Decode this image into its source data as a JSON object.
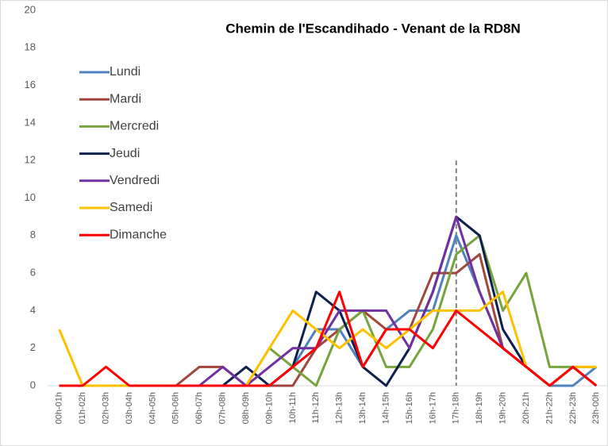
{
  "chart_data": {
    "type": "line",
    "title": "Chemin de l'Escandihado - Venant de la RD8N",
    "categories": [
      "00h-01h",
      "01h-02h",
      "02h-03h",
      "03h-04h",
      "04h-05h",
      "05h-06h",
      "06h-07h",
      "07h-08h",
      "08h-09h",
      "09h-10h",
      "10h-11h",
      "11h-12h",
      "12h-13h",
      "13h-14h",
      "14h-15h",
      "15h-16h",
      "16h-17h",
      "17h-18h",
      "18h-19h",
      "19h-20h",
      "20h-21h",
      "21h-22h",
      "22h-23h",
      "23h-00h"
    ],
    "series": [
      {
        "name": "Lundi",
        "color": "#4f81bd",
        "values": [
          0,
          0,
          0,
          0,
          0,
          0,
          0,
          0,
          0,
          0,
          1,
          3,
          3,
          1,
          3,
          4,
          4,
          8,
          5,
          2,
          1,
          0,
          0,
          1
        ]
      },
      {
        "name": "Mardi",
        "color": "#a0463c",
        "values": [
          0,
          0,
          0,
          0,
          0,
          0,
          1,
          1,
          0,
          0,
          0,
          2,
          3,
          4,
          3,
          3,
          6,
          6,
          7,
          2,
          1,
          0,
          1,
          0
        ]
      },
      {
        "name": "Mercredi",
        "color": "#77a33c",
        "values": [
          0,
          0,
          0,
          0,
          0,
          0,
          0,
          0,
          0,
          2,
          1,
          0,
          3,
          4,
          1,
          1,
          3,
          7,
          8,
          4,
          6,
          1,
          1,
          1
        ]
      },
      {
        "name": "Jeudi",
        "color": "#0d1f4f",
        "values": [
          0,
          0,
          0,
          0,
          0,
          0,
          0,
          0,
          1,
          0,
          1,
          5,
          4,
          1,
          0,
          2,
          5,
          9,
          8,
          3,
          1,
          0,
          1,
          0
        ]
      },
      {
        "name": "Vendredi",
        "color": "#7030a0",
        "values": [
          0,
          0,
          0,
          0,
          0,
          0,
          0,
          1,
          0,
          1,
          2,
          2,
          4,
          4,
          4,
          2,
          5,
          9,
          5,
          2,
          1,
          0,
          1,
          0
        ]
      },
      {
        "name": "Samedi",
        "color": "#ffc000",
        "values": [
          3,
          0,
          0,
          0,
          0,
          0,
          0,
          0,
          0,
          2,
          4,
          3,
          2,
          3,
          2,
          3,
          4,
          4,
          4,
          5,
          1,
          0,
          1,
          1
        ]
      },
      {
        "name": "Dimanche",
        "color": "#ff0000",
        "values": [
          0,
          0,
          1,
          0,
          0,
          0,
          0,
          0,
          0,
          0,
          1,
          2,
          5,
          1,
          3,
          3,
          2,
          4,
          3,
          2,
          1,
          0,
          1,
          0
        ]
      }
    ],
    "ylim": [
      0,
      20
    ],
    "yticks": [
      0,
      2,
      4,
      6,
      8,
      10,
      12,
      14,
      16,
      18,
      20
    ],
    "grid": false,
    "legend": "upper left",
    "vline": "17h-18h"
  }
}
